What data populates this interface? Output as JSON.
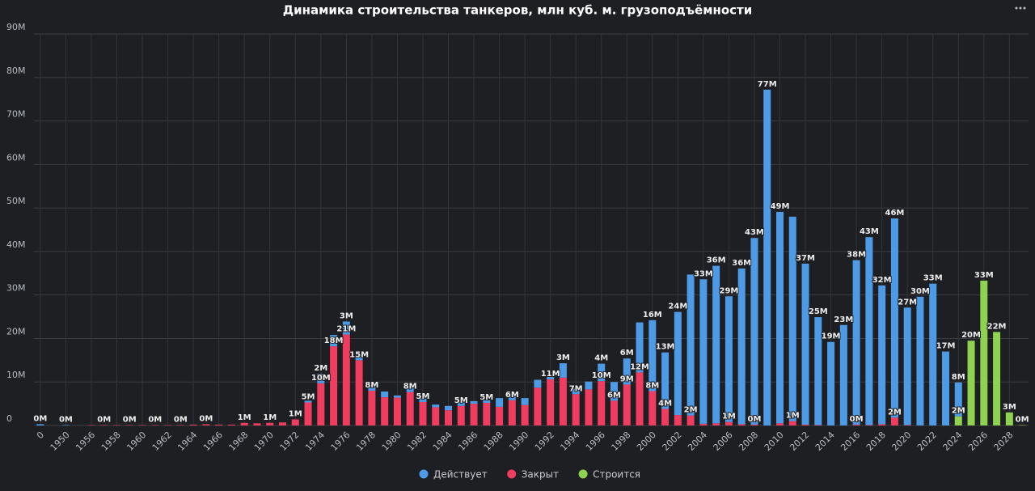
{
  "chart_data": {
    "type": "stacked_bar",
    "title": "Динамика строительства танкеров, млн куб. м. грузоподъёмности",
    "categories": [
      "0",
      null,
      "1950",
      null,
      "1956",
      null,
      "1958",
      null,
      "1960",
      null,
      "1962",
      null,
      "1964",
      null,
      "1966",
      null,
      "1968",
      null,
      "1970",
      null,
      "1972",
      null,
      "1974",
      null,
      "1976",
      null,
      "1978",
      null,
      "1980",
      null,
      "1982",
      null,
      "1984",
      null,
      "1986",
      null,
      "1988",
      null,
      "1990",
      null,
      "1992",
      null,
      "1994",
      null,
      "1996",
      null,
      "1998",
      null,
      "2000",
      null,
      "2002",
      null,
      "2004",
      null,
      "2006",
      null,
      "2008",
      null,
      "2010",
      null,
      "2012",
      null,
      "2014",
      null,
      "2016",
      null,
      "2018",
      null,
      "2020",
      null,
      "2022",
      null,
      "2024",
      null,
      "2026",
      null,
      "2028",
      null
    ],
    "series": [
      {
        "name": "Действует",
        "color": "#4d9be6",
        "values": [
          0.3,
          0,
          0.1,
          0,
          0,
          0,
          0,
          0,
          0,
          0,
          0,
          0,
          0,
          0,
          0,
          0,
          0,
          0,
          0,
          0,
          0,
          0.4,
          2.2,
          2.6,
          3,
          1.2,
          0.8,
          1.3,
          0.5,
          1.2,
          0.8,
          0.6,
          1.0,
          0.8,
          0.6,
          0.6,
          2.0,
          1.3,
          1.6,
          1.8,
          0.9,
          3.3,
          1.3,
          1.8,
          4,
          4.3,
          6,
          11.5,
          16.3,
          13,
          23.7,
          32.4,
          33.2,
          36.2,
          28.9,
          35.8,
          42.9,
          77.2,
          48.6,
          47,
          37,
          24.8,
          19.2,
          23.1,
          37.8,
          43.2,
          31.9,
          45.8,
          27,
          29.6,
          32.6,
          17,
          7.8,
          0,
          0,
          0,
          0,
          0
        ],
        "value_labels": [
          "0M",
          null,
          "0M",
          null,
          null,
          null,
          null,
          null,
          null,
          null,
          null,
          null,
          null,
          null,
          null,
          null,
          null,
          null,
          null,
          null,
          null,
          null,
          "2M",
          null,
          "3M",
          null,
          null,
          null,
          null,
          null,
          null,
          null,
          null,
          null,
          null,
          null,
          null,
          null,
          null,
          null,
          null,
          "3M",
          null,
          null,
          "4M",
          null,
          "6M",
          null,
          "16M",
          "13M",
          "24M",
          null,
          "33M",
          "36M",
          "29M",
          "36M",
          "43M",
          "77M",
          "49M",
          null,
          "37M",
          "25M",
          "19M",
          "23M",
          "38M",
          "43M",
          "32M",
          "46M",
          "27M",
          "30M",
          "33M",
          "17M",
          "8M",
          null,
          null,
          null,
          null,
          null
        ]
      },
      {
        "name": "Закрыт",
        "color": "#f03c5e",
        "values": [
          0,
          0,
          0,
          0,
          0.1,
          0.1,
          0.1,
          0.1,
          0.1,
          0.1,
          0.1,
          0.1,
          0.2,
          0.3,
          0.2,
          0.2,
          0.6,
          0.5,
          0.6,
          0.7,
          1.4,
          5.3,
          9.7,
          18.2,
          20.9,
          15,
          8,
          6.5,
          6.4,
          7.7,
          5.4,
          4.2,
          3.5,
          4.5,
          5.0,
          5.2,
          4.3,
          5.8,
          4.7,
          8.7,
          10.6,
          11,
          7.2,
          8.3,
          10.2,
          5.7,
          9.4,
          12.2,
          7.9,
          3.8,
          2.4,
          2.3,
          0.4,
          0.5,
          0.8,
          0.3,
          0.2,
          0,
          0.5,
          1.0,
          0.2,
          0.1,
          0,
          0,
          0.2,
          0.1,
          0.3,
          1.8,
          0.1,
          0,
          0,
          0,
          0,
          0,
          0,
          0,
          0,
          0
        ],
        "value_labels": [
          null,
          null,
          null,
          null,
          null,
          "0M",
          null,
          "0M",
          null,
          "0M",
          null,
          "0M",
          null,
          "0M",
          null,
          null,
          "1M",
          null,
          "1M",
          null,
          "1M",
          "5M",
          "10M",
          "18M",
          "21M",
          "15M",
          "8M",
          null,
          null,
          "8M",
          "5M",
          null,
          null,
          "5M",
          null,
          "5M",
          null,
          "6M",
          null,
          null,
          "11M",
          null,
          "7M",
          null,
          "10M",
          "6M",
          "9M",
          "12M",
          "8M",
          "4M",
          null,
          "2M",
          null,
          null,
          "1M",
          null,
          "0M",
          null,
          null,
          "1M",
          null,
          null,
          null,
          null,
          "0M",
          null,
          null,
          "2M",
          null,
          null,
          null,
          null,
          null,
          null,
          null,
          null,
          null,
          null
        ]
      },
      {
        "name": "Строится",
        "color": "#8fd150",
        "values": [
          0,
          0,
          0,
          0,
          0,
          0,
          0,
          0,
          0,
          0,
          0,
          0,
          0,
          0,
          0,
          0,
          0,
          0,
          0,
          0,
          0,
          0,
          0,
          0,
          0,
          0,
          0,
          0,
          0,
          0,
          0,
          0,
          0,
          0,
          0,
          0,
          0,
          0,
          0,
          0,
          0,
          0,
          0,
          0,
          0,
          0,
          0,
          0,
          0,
          0,
          0,
          0,
          0,
          0,
          0,
          0,
          0,
          0,
          0,
          0,
          0,
          0,
          0,
          0,
          0,
          0,
          0,
          0,
          0,
          0,
          0,
          0,
          2.1,
          19.5,
          33.3,
          21.5,
          3,
          0.1
        ],
        "value_labels": [
          null,
          null,
          null,
          null,
          null,
          null,
          null,
          null,
          null,
          null,
          null,
          null,
          null,
          null,
          null,
          null,
          null,
          null,
          null,
          null,
          null,
          null,
          null,
          null,
          null,
          null,
          null,
          null,
          null,
          null,
          null,
          null,
          null,
          null,
          null,
          null,
          null,
          null,
          null,
          null,
          null,
          null,
          null,
          null,
          null,
          null,
          null,
          null,
          null,
          null,
          null,
          null,
          null,
          null,
          null,
          null,
          null,
          null,
          null,
          null,
          null,
          null,
          null,
          null,
          null,
          null,
          null,
          null,
          null,
          null,
          null,
          null,
          "2M",
          "20M",
          "33M",
          "22M",
          "3M",
          "0M"
        ]
      }
    ],
    "ylim": [
      0,
      90
    ],
    "yticks": [
      {
        "value": 0,
        "label": "0"
      },
      {
        "value": 10,
        "label": "10M"
      },
      {
        "value": 20,
        "label": "20M"
      },
      {
        "value": 30,
        "label": "30M"
      },
      {
        "value": 40,
        "label": "40M"
      },
      {
        "value": 50,
        "label": "50M"
      },
      {
        "value": 60,
        "label": "60M"
      },
      {
        "value": 70,
        "label": "70M"
      },
      {
        "value": 80,
        "label": "80M"
      },
      {
        "value": 90,
        "label": "90M"
      }
    ],
    "grid": true,
    "legend": "bottom"
  }
}
